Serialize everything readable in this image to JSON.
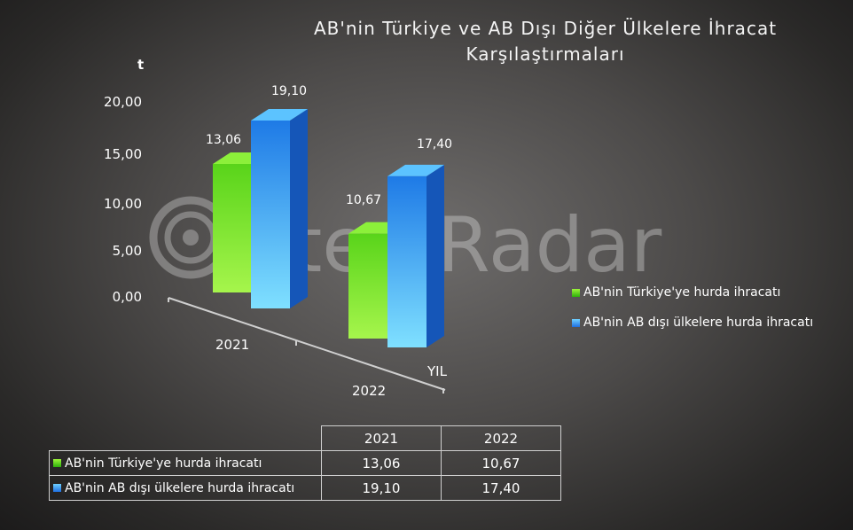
{
  "chart_data": {
    "type": "bar",
    "title": "AB'nin Türkiye ve AB Dışı Diğer Ülkelere İhracat Karşılaştırmaları",
    "ylabel": "t",
    "xlabel": "YIL",
    "categories": [
      "2021",
      "2022"
    ],
    "series": [
      {
        "name": "AB'nin Türkiye'ye hurda ihracatı",
        "values": [
          13.06,
          10.67
        ],
        "labels": [
          "13,06",
          "10,67"
        ],
        "color": "#4fd11c"
      },
      {
        "name": "AB'nin AB dışı ülkelere hurda ihracatı",
        "values": [
          19.1,
          17.4
        ],
        "labels": [
          "19,10",
          "17,40"
        ],
        "color": "#2f8ef0"
      }
    ],
    "yticks": [
      "0,00",
      "5,00",
      "10,00",
      "15,00",
      "20,00"
    ],
    "ylim": [
      0,
      20
    ],
    "legend": "right",
    "grid": false,
    "data_table": true
  },
  "watermark": "SteelRadar"
}
